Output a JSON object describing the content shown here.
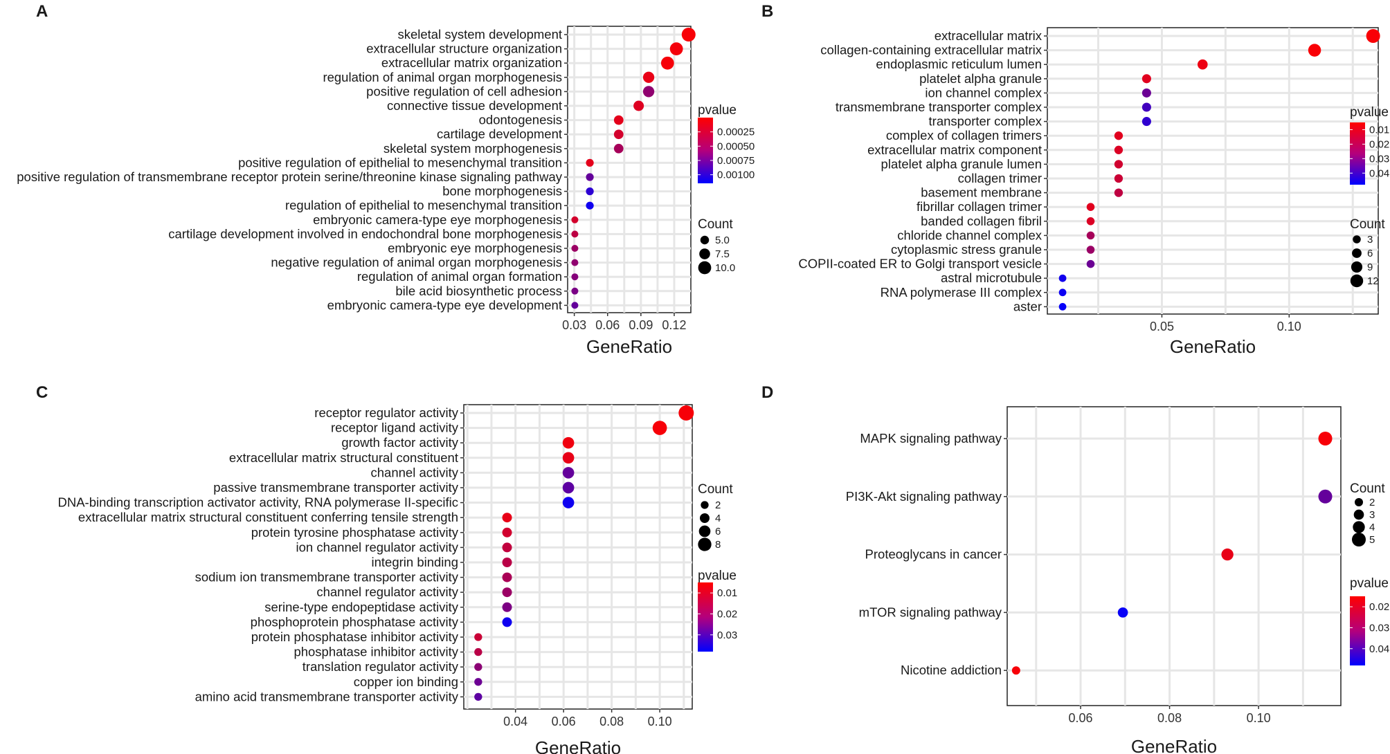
{
  "figure": {
    "panels": [
      {
        "letter": "A",
        "xlabel": "GeneRatio",
        "pvalue_title": "pvalue",
        "count_title": "Count"
      },
      {
        "letter": "B",
        "xlabel": "GeneRatio",
        "pvalue_title": "pvalue",
        "count_title": "Count"
      },
      {
        "letter": "C",
        "xlabel": "GeneRatio",
        "pvalue_title": "pvalue",
        "count_title": "Count"
      },
      {
        "letter": "D",
        "xlabel": "GeneRatio",
        "pvalue_title": "pvalue",
        "count_title": "Count"
      }
    ]
  },
  "chart_data": [
    {
      "type": "scatter",
      "panel": "A",
      "xlabel": "GeneRatio",
      "xlim": [
        0.024,
        0.135
      ],
      "xticks": [
        0.03,
        0.06,
        0.09,
        0.12
      ],
      "xtick_labels": [
        "0.03",
        "0.06",
        "0.09",
        "0.12"
      ],
      "colors": {
        "low_p": "#ff0000",
        "high_p": "#0000ff"
      },
      "pvalue_legend": {
        "title": "pvalue",
        "range": [
          0.0,
          0.00115
        ],
        "ticks": [
          0.00025,
          0.0005,
          0.00075,
          0.001
        ],
        "tick_labels": [
          "0.00025",
          "0.00050",
          "0.00075",
          "0.00100"
        ]
      },
      "count_legend": {
        "title": "Count",
        "values": [
          5,
          7.5,
          10
        ],
        "labels": [
          "5.0",
          "7.5",
          "10.0"
        ],
        "range": [
          3,
          11
        ]
      },
      "terms": [
        {
          "label": "skeletal system development",
          "x": 0.133,
          "count": 11,
          "pvalue": 3e-05
        },
        {
          "label": "extracellular structure organization",
          "x": 0.122,
          "count": 10,
          "pvalue": 5e-05
        },
        {
          "label": "extracellular matrix organization",
          "x": 0.114,
          "count": 10,
          "pvalue": 4e-05
        },
        {
          "label": "regulation of animal organ morphogenesis",
          "x": 0.097,
          "count": 8,
          "pvalue": 0.0001
        },
        {
          "label": "positive regulation of cell adhesion",
          "x": 0.097,
          "count": 8,
          "pvalue": 0.0005
        },
        {
          "label": "connective tissue development",
          "x": 0.088,
          "count": 7,
          "pvalue": 0.00015
        },
        {
          "label": "odontogenesis",
          "x": 0.07,
          "count": 6,
          "pvalue": 0.00012
        },
        {
          "label": "cartilage development",
          "x": 0.07,
          "count": 6,
          "pvalue": 0.0002
        },
        {
          "label": "skeletal system morphogenesis",
          "x": 0.07,
          "count": 6,
          "pvalue": 0.0004
        },
        {
          "label": "positive regulation of epithelial to mesenchymal transition",
          "x": 0.044,
          "count": 4,
          "pvalue": 0.00012
        },
        {
          "label": "positive regulation of transmembrane receptor protein serine/threonine kinase signaling pathway",
          "x": 0.044,
          "count": 4,
          "pvalue": 0.0007
        },
        {
          "label": "bone morphogenesis",
          "x": 0.044,
          "count": 4,
          "pvalue": 0.00095
        },
        {
          "label": "regulation of epithelial to mesenchymal transition",
          "x": 0.044,
          "count": 4,
          "pvalue": 0.00108
        },
        {
          "label": "embryonic camera-type eye morphogenesis",
          "x": 0.0305,
          "count": 3,
          "pvalue": 0.0002
        },
        {
          "label": "cartilage development involved in endochondral bone morphogenesis",
          "x": 0.0305,
          "count": 3,
          "pvalue": 0.0003
        },
        {
          "label": "embryonic eye morphogenesis",
          "x": 0.0305,
          "count": 3,
          "pvalue": 0.00045
        },
        {
          "label": "negative regulation of animal organ morphogenesis",
          "x": 0.0305,
          "count": 3,
          "pvalue": 0.0005
        },
        {
          "label": "regulation of animal organ formation",
          "x": 0.0305,
          "count": 3,
          "pvalue": 0.00055
        },
        {
          "label": "bile acid biosynthetic process",
          "x": 0.0305,
          "count": 3,
          "pvalue": 0.0006
        },
        {
          "label": "embryonic camera-type eye development",
          "x": 0.0305,
          "count": 3,
          "pvalue": 0.0007
        }
      ]
    },
    {
      "type": "scatter",
      "panel": "B",
      "xlabel": "GeneRatio",
      "xlim": [
        0.005,
        0.135
      ],
      "xticks": [
        0.05,
        0.1
      ],
      "xtick_labels": [
        "0.05",
        "0.10"
      ],
      "colors": {
        "low_p": "#ff0000",
        "high_p": "#0000ff"
      },
      "pvalue_legend": {
        "title": "pvalue",
        "range": [
          0.005,
          0.048
        ],
        "ticks": [
          0.01,
          0.02,
          0.03,
          0.04
        ],
        "tick_labels": [
          "0.01",
          "0.02",
          "0.03",
          "0.04"
        ]
      },
      "count_legend": {
        "title": "Count",
        "values": [
          3,
          6,
          9,
          12
        ],
        "labels": [
          "3",
          "6",
          "9",
          "12"
        ],
        "range": [
          1,
          14
        ]
      },
      "terms": [
        {
          "label": "extracellular matrix",
          "x": 0.133,
          "count": 14,
          "pvalue": 0.006
        },
        {
          "label": "collagen-containing extracellular matrix",
          "x": 0.11,
          "count": 12,
          "pvalue": 0.006
        },
        {
          "label": "endoplasmic reticulum lumen",
          "x": 0.066,
          "count": 7,
          "pvalue": 0.008
        },
        {
          "label": "platelet alpha granule",
          "x": 0.044,
          "count": 5,
          "pvalue": 0.01
        },
        {
          "label": "ion channel complex",
          "x": 0.044,
          "count": 5,
          "pvalue": 0.03
        },
        {
          "label": "transmembrane transporter complex",
          "x": 0.044,
          "count": 5,
          "pvalue": 0.037
        },
        {
          "label": "transporter complex",
          "x": 0.044,
          "count": 5,
          "pvalue": 0.04
        },
        {
          "label": "complex of collagen trimers",
          "x": 0.033,
          "count": 4,
          "pvalue": 0.01
        },
        {
          "label": "extracellular matrix component",
          "x": 0.033,
          "count": 4,
          "pvalue": 0.011
        },
        {
          "label": "platelet alpha granule lumen",
          "x": 0.033,
          "count": 4,
          "pvalue": 0.013
        },
        {
          "label": "collagen trimer",
          "x": 0.033,
          "count": 4,
          "pvalue": 0.014
        },
        {
          "label": "basement membrane",
          "x": 0.033,
          "count": 4,
          "pvalue": 0.016
        },
        {
          "label": "fibrillar collagen trimer",
          "x": 0.022,
          "count": 3,
          "pvalue": 0.01
        },
        {
          "label": "banded collagen fibril",
          "x": 0.022,
          "count": 3,
          "pvalue": 0.011
        },
        {
          "label": "chloride channel complex",
          "x": 0.022,
          "count": 3,
          "pvalue": 0.02
        },
        {
          "label": "cytoplasmic stress granule",
          "x": 0.022,
          "count": 3,
          "pvalue": 0.022
        },
        {
          "label": "COPII-coated ER to Golgi transport vesicle",
          "x": 0.022,
          "count": 3,
          "pvalue": 0.03
        },
        {
          "label": "astral microtubule",
          "x": 0.011,
          "count": 2,
          "pvalue": 0.045
        },
        {
          "label": "RNA polymerase III complex",
          "x": 0.011,
          "count": 2,
          "pvalue": 0.046
        },
        {
          "label": "aster",
          "x": 0.011,
          "count": 2,
          "pvalue": 0.047
        }
      ]
    },
    {
      "type": "scatter",
      "panel": "C",
      "xlabel": "GeneRatio",
      "xlim": [
        0.0185,
        0.1135
      ],
      "xticks": [
        0.04,
        0.06,
        0.08,
        0.1
      ],
      "xtick_labels": [
        "0.04",
        "0.06",
        "0.08",
        "0.10"
      ],
      "colors": {
        "low_p": "#ff0000",
        "high_p": "#0000ff"
      },
      "count_legend": {
        "title": "Count",
        "values": [
          2,
          4,
          6,
          8
        ],
        "labels": [
          "2",
          "4",
          "6",
          "8"
        ],
        "range": [
          1,
          10
        ]
      },
      "pvalue_legend": {
        "title": "pvalue",
        "range": [
          0.005,
          0.038
        ],
        "ticks": [
          0.01,
          0.02,
          0.03
        ],
        "tick_labels": [
          "0.01",
          "0.02",
          "0.03"
        ]
      },
      "terms": [
        {
          "label": "receptor regulator activity",
          "x": 0.111,
          "count": 10,
          "pvalue": 0.006
        },
        {
          "label": "receptor ligand activity",
          "x": 0.1,
          "count": 9,
          "pvalue": 0.006
        },
        {
          "label": "growth factor activity",
          "x": 0.062,
          "count": 6,
          "pvalue": 0.007
        },
        {
          "label": "extracellular matrix structural constituent",
          "x": 0.062,
          "count": 6,
          "pvalue": 0.008
        },
        {
          "label": "channel activity",
          "x": 0.062,
          "count": 6,
          "pvalue": 0.025
        },
        {
          "label": "passive transmembrane transporter activity",
          "x": 0.062,
          "count": 6,
          "pvalue": 0.026
        },
        {
          "label": "DNA-binding transcription activator activity, RNA polymerase II-specific",
          "x": 0.062,
          "count": 6,
          "pvalue": 0.036
        },
        {
          "label": "extracellular matrix structural constituent conferring tensile strength",
          "x": 0.0365,
          "count": 4,
          "pvalue": 0.008
        },
        {
          "label": "protein tyrosine phosphatase activity",
          "x": 0.0365,
          "count": 4,
          "pvalue": 0.011
        },
        {
          "label": "ion channel regulator activity",
          "x": 0.0365,
          "count": 4,
          "pvalue": 0.013
        },
        {
          "label": "integrin binding",
          "x": 0.0365,
          "count": 4,
          "pvalue": 0.014
        },
        {
          "label": "sodium ion transmembrane transporter activity",
          "x": 0.0365,
          "count": 4,
          "pvalue": 0.016
        },
        {
          "label": "channel regulator activity",
          "x": 0.0365,
          "count": 4,
          "pvalue": 0.018
        },
        {
          "label": "serine-type endopeptidase activity",
          "x": 0.0365,
          "count": 4,
          "pvalue": 0.022
        },
        {
          "label": "phosphoprotein phosphatase activity",
          "x": 0.0365,
          "count": 4,
          "pvalue": 0.036
        },
        {
          "label": "protein phosphatase inhibitor activity",
          "x": 0.0245,
          "count": 2,
          "pvalue": 0.012
        },
        {
          "label": "phosphatase inhibitor activity",
          "x": 0.0245,
          "count": 2,
          "pvalue": 0.014
        },
        {
          "label": "translation regulator activity",
          "x": 0.0245,
          "count": 2,
          "pvalue": 0.02
        },
        {
          "label": "copper ion binding",
          "x": 0.0245,
          "count": 2,
          "pvalue": 0.024
        },
        {
          "label": "amino acid transmembrane transporter activity",
          "x": 0.0245,
          "count": 2,
          "pvalue": 0.026
        }
      ]
    },
    {
      "type": "scatter",
      "panel": "D",
      "xlabel": "GeneRatio",
      "xlim": [
        0.0435,
        0.1185
      ],
      "xticks": [
        0.06,
        0.08,
        0.1
      ],
      "xtick_labels": [
        "0.06",
        "0.08",
        "0.10"
      ],
      "colors": {
        "low_p": "#ff0000",
        "high_p": "#0000ff"
      },
      "count_legend": {
        "title": "Count",
        "values": [
          2,
          3,
          4,
          5
        ],
        "labels": [
          "2",
          "3",
          "4",
          "5"
        ],
        "range": [
          2,
          5
        ]
      },
      "pvalue_legend": {
        "title": "pvalue",
        "range": [
          0.015,
          0.048
        ],
        "ticks": [
          0.02,
          0.03,
          0.04
        ],
        "tick_labels": [
          "0.02",
          "0.03",
          "0.04"
        ]
      },
      "terms": [
        {
          "label": "MAPK signaling pathway",
          "x": 0.115,
          "count": 5,
          "pvalue": 0.016
        },
        {
          "label": "PI3K-Akt signaling pathway",
          "x": 0.115,
          "count": 5,
          "pvalue": 0.035
        },
        {
          "label": "Proteoglycans in cancer",
          "x": 0.093,
          "count": 4,
          "pvalue": 0.018
        },
        {
          "label": "mTOR signaling pathway",
          "x": 0.0695,
          "count": 3,
          "pvalue": 0.047
        },
        {
          "label": "Nicotine addiction",
          "x": 0.0455,
          "count": 2,
          "pvalue": 0.016
        }
      ]
    }
  ]
}
